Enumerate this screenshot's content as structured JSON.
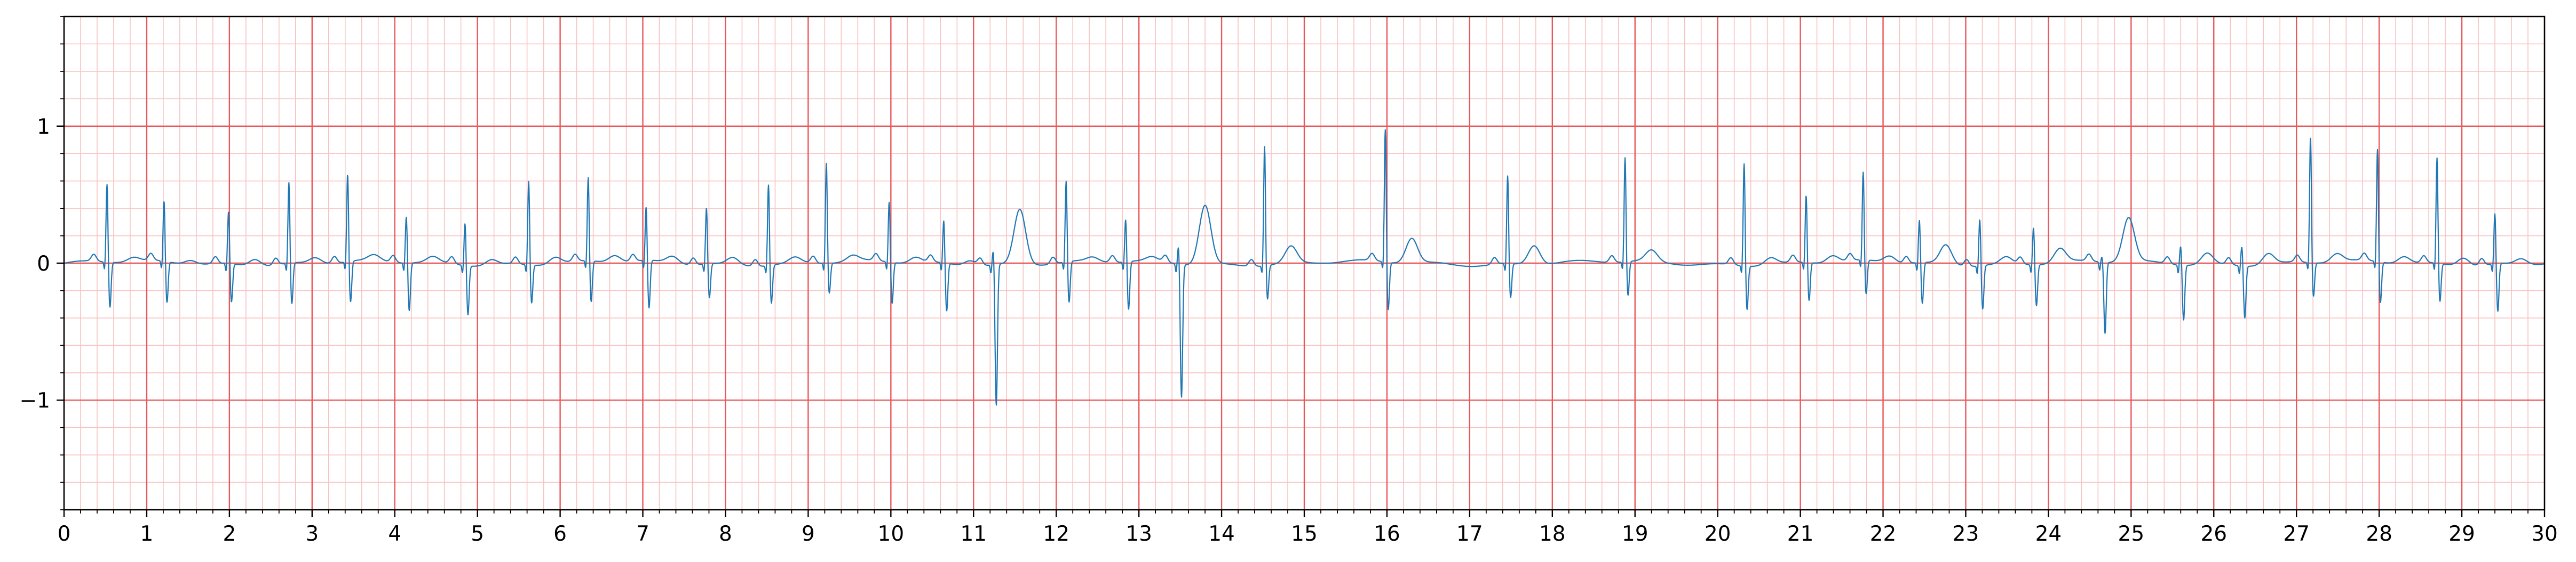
{
  "chart_data": {
    "type": "line",
    "title": "",
    "xlabel": "",
    "ylabel": "",
    "xlim": [
      0,
      30
    ],
    "ylim": [
      -1.8,
      1.8
    ],
    "x_ticks": [
      0,
      1,
      2,
      3,
      4,
      5,
      6,
      7,
      8,
      9,
      10,
      11,
      12,
      13,
      14,
      15,
      16,
      17,
      18,
      19,
      20,
      21,
      22,
      23,
      24,
      25,
      26,
      27,
      28,
      29,
      30
    ],
    "x_tick_labels": [
      "0",
      "1",
      "2",
      "3",
      "4",
      "5",
      "6",
      "7",
      "8",
      "9",
      "10",
      "11",
      "12",
      "13",
      "14",
      "15",
      "16",
      "17",
      "18",
      "19",
      "20",
      "21",
      "22",
      "23",
      "24",
      "25",
      "26",
      "27",
      "28",
      "29",
      "30"
    ],
    "y_ticks": [
      -1,
      0,
      1
    ],
    "y_tick_labels": [
      "−1",
      "0",
      "1"
    ],
    "grid": {
      "major": true,
      "minor": true,
      "major_x_step": 1,
      "major_y_step": 1,
      "minor_x_step": 0.2,
      "minor_y_step": 0.2
    },
    "colors": {
      "major_grid": "#e8585a",
      "minor_grid": "#f8c2c3",
      "trace": "#1f77b4",
      "axis": "#000000"
    },
    "series": [
      {
        "beats": [
          {
            "t": 0.52,
            "r": 0.58,
            "s": -0.33,
            "t_wave": 0.03
          },
          {
            "t": 1.21,
            "r": 0.45,
            "s": -0.3,
            "t_wave": 0.03
          },
          {
            "t": 1.99,
            "r": 0.39,
            "s": -0.28,
            "t_wave": 0.05
          },
          {
            "t": 2.72,
            "r": 0.6,
            "s": -0.3,
            "t_wave": 0.04
          },
          {
            "t": 3.43,
            "r": 0.65,
            "s": -0.3,
            "t_wave": 0.04
          },
          {
            "t": 4.14,
            "r": 0.35,
            "s": -0.35,
            "t_wave": 0.04
          },
          {
            "t": 4.85,
            "r": 0.32,
            "s": -0.36,
            "t_wave": 0.04
          },
          {
            "t": 5.62,
            "r": 0.62,
            "s": -0.28,
            "t_wave": 0.05
          },
          {
            "t": 6.34,
            "r": 0.62,
            "s": -0.3,
            "t_wave": 0.05
          },
          {
            "t": 7.04,
            "r": 0.4,
            "s": -0.35,
            "t_wave": 0.05
          },
          {
            "t": 7.77,
            "r": 0.42,
            "s": -0.25,
            "t_wave": 0.05
          },
          {
            "t": 8.52,
            "r": 0.6,
            "s": -0.28,
            "t_wave": 0.04
          },
          {
            "t": 9.22,
            "r": 0.74,
            "s": -0.22,
            "t_wave": 0.04
          },
          {
            "t": 9.98,
            "r": 0.45,
            "s": -0.3,
            "t_wave": 0.04
          },
          {
            "t": 10.64,
            "r": 0.32,
            "s": -0.35,
            "t_wave": 0.04
          },
          {
            "t": 11.24,
            "r": 0.12,
            "s": -1.03,
            "t_wave": 0.4
          },
          {
            "t": 12.12,
            "r": 0.6,
            "s": -0.3,
            "t_wave": 0.03
          },
          {
            "t": 12.84,
            "r": 0.32,
            "s": -0.35,
            "t_wave": 0.03
          },
          {
            "t": 13.48,
            "r": 0.15,
            "s": -0.97,
            "t_wave": 0.43
          },
          {
            "t": 14.52,
            "r": 0.88,
            "s": -0.25,
            "t_wave": 0.12
          },
          {
            "t": 15.98,
            "r": 0.98,
            "s": -0.35,
            "t_wave": 0.18
          },
          {
            "t": 17.46,
            "r": 0.65,
            "s": -0.25,
            "t_wave": 0.14
          },
          {
            "t": 18.88,
            "r": 0.77,
            "s": -0.25,
            "t_wave": 0.08
          },
          {
            "t": 20.32,
            "r": 0.76,
            "s": -0.32,
            "t_wave": 0.05
          },
          {
            "t": 21.07,
            "r": 0.5,
            "s": -0.28,
            "t_wave": 0.05
          },
          {
            "t": 21.76,
            "r": 0.65,
            "s": -0.25,
            "t_wave": 0.05
          },
          {
            "t": 22.44,
            "r": 0.32,
            "s": -0.3,
            "t_wave": 0.14
          },
          {
            "t": 23.17,
            "r": 0.35,
            "s": -0.32,
            "t_wave": 0.05
          },
          {
            "t": 23.82,
            "r": 0.28,
            "s": -0.3,
            "t_wave": 0.1
          },
          {
            "t": 24.65,
            "r": 0.05,
            "s": -0.52,
            "t_wave": 0.32
          },
          {
            "t": 25.6,
            "r": 0.15,
            "s": -0.4,
            "t_wave": 0.08
          },
          {
            "t": 26.34,
            "r": 0.15,
            "s": -0.38,
            "t_wave": 0.08
          },
          {
            "t": 27.17,
            "r": 0.93,
            "s": -0.25,
            "t_wave": 0.06
          },
          {
            "t": 27.98,
            "r": 0.83,
            "s": -0.3,
            "t_wave": 0.05
          },
          {
            "t": 28.7,
            "r": 0.78,
            "s": -0.28,
            "t_wave": 0.06
          },
          {
            "t": 29.4,
            "r": 0.38,
            "s": -0.35,
            "t_wave": 0.04
          }
        ]
      }
    ]
  }
}
